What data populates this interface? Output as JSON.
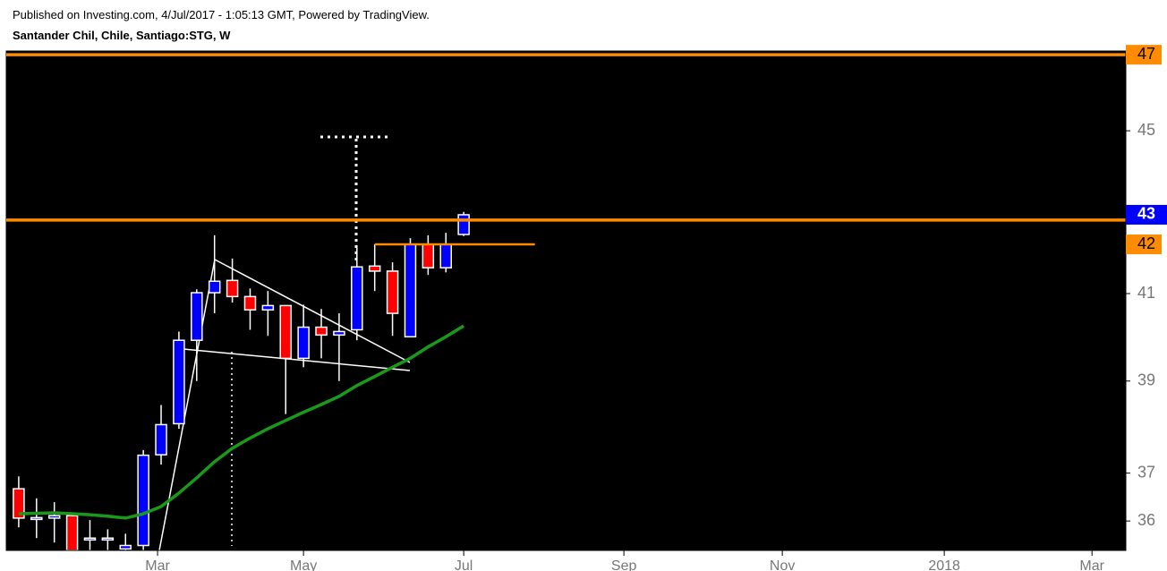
{
  "chart_data": {
    "type": "candlestick",
    "subtitle": "Published on Investing.com, 4/Jul/2017 - 1:05:13 GMT, Powered by TradingView.",
    "title": "Santander Chil, Chile, Santiago:STG, W",
    "open": [
      36.67,
      36.07,
      36.06,
      36.11,
      35.65,
      35.65,
      35.43,
      35.5,
      37.39,
      38.06,
      39.92,
      41.02,
      41.31,
      40.93,
      40.62,
      40.72,
      39.51,
      40.22,
      40.04,
      40.16,
      41.65,
      41.53,
      40.0,
      42.17,
      41.61,
      42.41
    ],
    "high": [
      36.93,
      36.47,
      36.39,
      36.11,
      36.02,
      35.83,
      35.74,
      37.49,
      38.47,
      40.12,
      41.1,
      42.39,
      41.83,
      41.12,
      41.06,
      40.72,
      40.74,
      40.64,
      40.54,
      42.13,
      42.17,
      41.74,
      42.32,
      42.39,
      42.45,
      42.96
    ],
    "low": [
      35.87,
      35.65,
      35.56,
      35.3,
      35.4,
      35.4,
      35.4,
      35.4,
      37.18,
      37.95,
      39.0,
      40.54,
      40.79,
      40.16,
      40.02,
      38.27,
      39.31,
      39.51,
      39.0,
      39.92,
      41.06,
      40.02,
      40.0,
      41.44,
      41.5,
      42.37
    ],
    "close": [
      36.06,
      36.07,
      36.11,
      35.4,
      35.65,
      35.65,
      35.5,
      37.38,
      38.04,
      39.92,
      41.02,
      41.29,
      40.93,
      40.62,
      40.72,
      39.51,
      40.22,
      40.04,
      40.12,
      41.63,
      41.53,
      40.54,
      42.17,
      41.61,
      42.17,
      42.89
    ],
    "up_color": "#0000ff",
    "down_color": "#ff0000",
    "log_scale": true,
    "ylim": [
      35.4,
      47.1
    ],
    "yticks": [
      36,
      37,
      39,
      41,
      45,
      47
    ],
    "xlim": [
      -0.7,
      62.2
    ],
    "xticks": [
      {
        "value": 7.8,
        "label": "Mar"
      },
      {
        "value": 16.0,
        "label": "May"
      },
      {
        "value": 25.0,
        "label": "Jul"
      },
      {
        "value": 34.0,
        "label": "Sep"
      },
      {
        "value": 42.9,
        "label": "Nov"
      },
      {
        "value": 52.0,
        "label": "2018"
      },
      {
        "value": 60.3,
        "label": "Mar"
      }
    ],
    "moving_average": {
      "color": "#1a9a1a",
      "values": [
        36.15,
        36.16,
        36.17,
        36.15,
        36.13,
        36.1,
        36.06,
        36.15,
        36.3,
        36.58,
        36.9,
        37.24,
        37.53,
        37.75,
        37.95,
        38.13,
        38.31,
        38.48,
        38.66,
        38.9,
        39.1,
        39.31,
        39.51,
        39.77,
        40.0,
        40.25
      ]
    },
    "price_lines": [
      {
        "value": 47,
        "label": "47",
        "color": "#ff8c00"
      },
      {
        "value": 42.76,
        "color": "#ff8c00"
      },
      {
        "value": 42.17,
        "label": "42",
        "color": "#ff8c00",
        "x_from": 20,
        "x_to": 29
      }
    ],
    "last_price": {
      "value": 42.89,
      "label": "43",
      "color": "#0000ff"
    }
  }
}
